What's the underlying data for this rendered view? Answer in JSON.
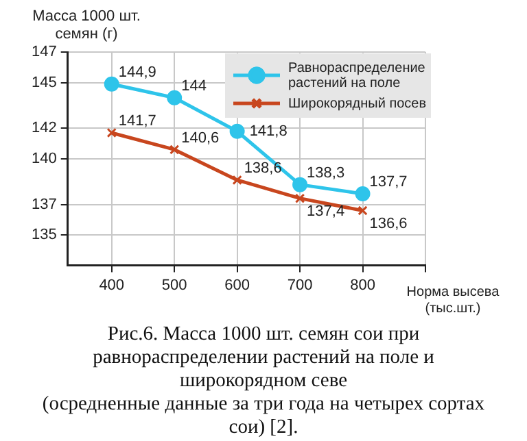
{
  "chart_data": {
    "type": "line",
    "title": "Рис.6. Масса 1000 шт. семян сои при равнораспределении растений на поле и широкорядном севе\n(осредненные данные за три года на четырех сортах сои) [2].",
    "ylabel": "Масса 1000 шт. семян (г)",
    "xlabel": "Норма высева (тыс.шт.)",
    "x": [
      400,
      500,
      600,
      700,
      800
    ],
    "series": [
      {
        "name": "Равнораспределение растений на поле",
        "color": "#2ec4ea",
        "marker": "circle",
        "values": [
          144.9,
          144,
          141.8,
          138.3,
          137.7
        ],
        "value_labels": [
          "144,9",
          "144",
          "141,8",
          "138,3",
          "137,7"
        ]
      },
      {
        "name": "Широкорядный посев",
        "color": "#c8461e",
        "marker": "cross",
        "values": [
          141.7,
          140.6,
          138.6,
          137.4,
          136.6
        ],
        "value_labels": [
          "141,7",
          "140,6",
          "138,6",
          "137,4",
          "136,6"
        ]
      }
    ],
    "xlim": [
      330,
      900
    ],
    "xticks": [
      400,
      500,
      600,
      700,
      800,
      {
        "value": 900,
        "label": null
      }
    ],
    "ylim": [
      133,
      147
    ],
    "yticks": [
      135,
      137,
      140,
      142,
      145,
      147
    ],
    "grid": true,
    "legend": "top right"
  }
}
